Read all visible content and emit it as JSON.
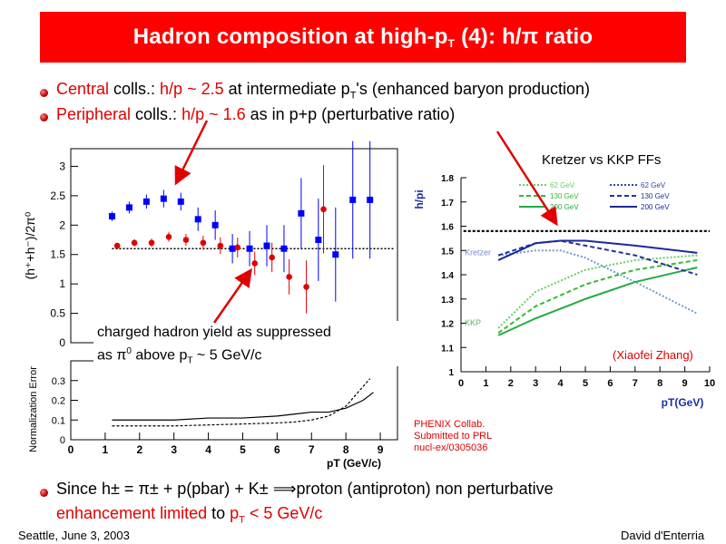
{
  "slide": {
    "title_main": "Hadron composition at high-p",
    "title_sub": "T",
    "title_rest": " (4): h/π ratio",
    "bullet1": {
      "c1": "Central",
      "c2": " colls.: ",
      "c3": "h/p ~ 2.5",
      "c4": " at intermediate p",
      "c5": "T",
      "c6": "'s (enhanced baryon production)"
    },
    "bullet2": {
      "c1": "Peripheral",
      "c2": " colls.: ",
      "c3": "h/p ~ 1.6",
      "c4": " as in p+p (perturbative ratio)"
    },
    "bullet3": {
      "c1": "Since h",
      "c2": "± = π± + p(pbar) + K±",
      "c3": " ⟹proton (antiproton) non perturbative"
    },
    "bullet3b": {
      "c1": "enhancement limited",
      "c2": " to ",
      "c3": "p",
      "c4": "T",
      "c5": " < 5 GeV/c"
    },
    "annotation1": {
      "l1": "charged hadron yield as suppressed",
      "l2a": "as  π",
      "l2b": "0",
      "l2c": " above p",
      "l2d": "T",
      "l2e": " ~ 5 GeV/c"
    },
    "kretzer_label": "Kretzer vs KKP FFs",
    "xiaofei": "(Xiaofei Zhang)",
    "phenix": [
      "PHENIX Collab.",
      "Submitted to PRL",
      "nucl-ex/0305036"
    ],
    "footer_left": "Seattle, June  3, 2003",
    "footer_right": "David d'Enterria",
    "colors": {
      "title_bg": "#ff0000",
      "accent": "#e00000",
      "blue": "#0000ff",
      "plot_blue": "#1a2fa0"
    }
  },
  "chart_data": [
    {
      "type": "scatter",
      "ylabel": "(h⁺+h⁻)/2π⁰",
      "ylim": [
        0,
        3.3
      ],
      "xlim": [
        0,
        9.5
      ],
      "yticks": [
        "0",
        "0.5",
        "1",
        "1.5",
        "2",
        "2.5",
        "3"
      ],
      "reference_line": 1.6,
      "series": [
        {
          "color": "#0000ff",
          "marker": "square",
          "x": [
            1.2,
            1.7,
            2.2,
            2.7,
            3.2,
            3.7,
            4.2,
            4.7,
            5.2,
            5.7,
            6.2,
            6.7,
            7.2,
            7.7,
            8.2,
            8.7
          ],
          "y": [
            2.15,
            2.3,
            2.4,
            2.45,
            2.4,
            2.1,
            2.0,
            1.6,
            1.6,
            1.65,
            1.6,
            2.2,
            1.75,
            1.5,
            2.43,
            2.43
          ],
          "err": [
            0.08,
            0.1,
            0.12,
            0.15,
            0.15,
            0.2,
            0.25,
            0.25,
            0.3,
            0.35,
            0.4,
            0.6,
            0.7,
            0.8,
            1.0,
            1.0
          ]
        },
        {
          "color": "#e00000",
          "marker": "circle",
          "x": [
            1.35,
            1.85,
            2.35,
            2.85,
            3.35,
            3.85,
            4.35,
            4.85,
            5.35,
            5.85,
            6.35,
            6.85,
            7.35
          ],
          "y": [
            1.65,
            1.7,
            1.7,
            1.8,
            1.75,
            1.7,
            1.65,
            1.62,
            1.35,
            1.45,
            1.12,
            0.95,
            2.27
          ],
          "err": [
            0.05,
            0.06,
            0.07,
            0.08,
            0.1,
            0.12,
            0.14,
            0.17,
            0.2,
            0.25,
            0.3,
            0.45,
            0.75
          ]
        }
      ]
    },
    {
      "type": "line",
      "ylabel": "Normalization Error",
      "xlabel": "pT  (GeV/c)",
      "xlim": [
        0,
        9.5
      ],
      "ylim": [
        0,
        0.4
      ],
      "xticks": [
        "0",
        "1",
        "2",
        "3",
        "4",
        "5",
        "6",
        "7",
        "8",
        "9"
      ],
      "yticks": [
        "0",
        "0.1",
        "0.2",
        "0.3"
      ],
      "series": [
        {
          "style": "solid",
          "x": [
            1.2,
            3,
            4,
            5,
            6,
            6.5,
            7,
            7.5,
            8,
            8.5,
            8.8
          ],
          "y": [
            0.1,
            0.1,
            0.11,
            0.11,
            0.12,
            0.13,
            0.14,
            0.14,
            0.16,
            0.2,
            0.24
          ]
        },
        {
          "style": "dotted",
          "x": [
            1.2,
            3,
            4,
            5,
            6,
            6.5,
            7,
            7.5,
            8,
            8.5,
            8.7
          ],
          "y": [
            0.07,
            0.07,
            0.075,
            0.08,
            0.085,
            0.09,
            0.1,
            0.12,
            0.17,
            0.27,
            0.31
          ]
        }
      ]
    },
    {
      "type": "line",
      "ylabel": "h/pi",
      "xlabel": "pT(GeV)",
      "xlim": [
        0,
        10
      ],
      "ylim": [
        1,
        1.8
      ],
      "xticks": [
        "0",
        "1",
        "2",
        "3",
        "4",
        "5",
        "6",
        "7",
        "8",
        "9",
        "10"
      ],
      "yticks": [
        "1",
        "1.1",
        "1.2",
        "1.3",
        "1.4",
        "1.5",
        "1.6",
        "1.7",
        "1.8"
      ],
      "reference_line": 1.58,
      "series_labels": [
        "Kretzer",
        "KKP"
      ],
      "legend": [
        {
          "name": "62 GeV",
          "color": "#66cc66",
          "style": "dotted"
        },
        {
          "name": "130 GeV",
          "color": "#33bb33",
          "style": "dashed"
        },
        {
          "name": "200 GeV",
          "color": "#22aa44",
          "style": "solid"
        },
        {
          "name": "62 GeV",
          "color": "#3344aa",
          "style": "dotted"
        },
        {
          "name": "130 GeV",
          "color": "#223399",
          "style": "dashed"
        },
        {
          "name": "200 GeV",
          "color": "#1a2a99",
          "style": "solid"
        }
      ],
      "curves": [
        {
          "color": "#66cc66",
          "dash": "2,2",
          "x": [
            1.5,
            3,
            5,
            7,
            9.5
          ],
          "y": [
            1.18,
            1.33,
            1.42,
            1.46,
            1.48
          ]
        },
        {
          "color": "#33bb33",
          "dash": "5,3",
          "x": [
            1.5,
            3,
            5,
            7,
            9.5
          ],
          "y": [
            1.16,
            1.27,
            1.36,
            1.42,
            1.46
          ]
        },
        {
          "color": "#22aa44",
          "dash": "",
          "x": [
            1.5,
            3,
            5,
            7,
            9.5
          ],
          "y": [
            1.15,
            1.22,
            1.3,
            1.37,
            1.43
          ]
        },
        {
          "color": "#7799cc",
          "dash": "2,2",
          "x": [
            1.5,
            3,
            4,
            5,
            7,
            9.5
          ],
          "y": [
            1.48,
            1.5,
            1.5,
            1.47,
            1.37,
            1.24
          ]
        },
        {
          "color": "#223399",
          "dash": "5,3",
          "x": [
            1.5,
            3,
            4,
            5,
            7,
            9.5
          ],
          "y": [
            1.48,
            1.53,
            1.54,
            1.52,
            1.48,
            1.4
          ]
        },
        {
          "color": "#1a2a99",
          "dash": "",
          "x": [
            1.5,
            3,
            4,
            5,
            7,
            9.5
          ],
          "y": [
            1.46,
            1.53,
            1.54,
            1.54,
            1.52,
            1.49
          ]
        }
      ]
    }
  ]
}
